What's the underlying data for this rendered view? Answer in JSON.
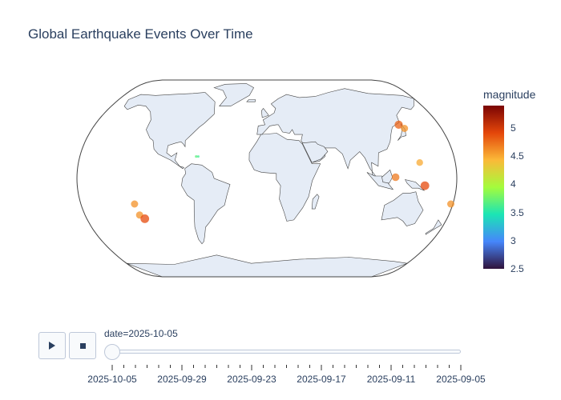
{
  "title": "Global Earthquake Events Over Time",
  "colorbar": {
    "title": "magnitude",
    "min": 2.5,
    "max": 5.4,
    "ticks": [
      "5",
      "4.5",
      "4",
      "3.5",
      "3",
      "2.5"
    ],
    "tick_values": [
      5,
      4.5,
      4,
      3.5,
      3,
      2.5
    ],
    "colorscale": [
      "#30123b",
      "#4686fb",
      "#1be5b5",
      "#a4fc3c",
      "#fbb938",
      "#e4460a",
      "#7a0403"
    ]
  },
  "map": {
    "projection": "natural earth",
    "land_color": "#e5ecf6",
    "coast_color": "#444444",
    "events": [
      {
        "lon": -128,
        "lat": -21,
        "magnitude": 4.6
      },
      {
        "lon": -126,
        "lat": -30,
        "magnitude": 4.6
      },
      {
        "lon": -122,
        "lat": -33,
        "magnitude": 4.9
      },
      {
        "lon": -68,
        "lat": 18,
        "magnitude": 3.7
      },
      {
        "lon": -66,
        "lat": 18,
        "magnitude": 3.6
      },
      {
        "lon": 138,
        "lat": 44,
        "magnitude": 4.8
      },
      {
        "lon": 142,
        "lat": 41,
        "magnitude": 4.6
      },
      {
        "lon": 122,
        "lat": 1,
        "magnitude": 4.7
      },
      {
        "lon": 146,
        "lat": 13,
        "magnitude": 4.5
      },
      {
        "lon": 150,
        "lat": -6,
        "magnitude": 4.9
      },
      {
        "lon": 178,
        "lat": -21,
        "magnitude": 4.6
      }
    ]
  },
  "player": {
    "slider_label": "date=2025-10-05",
    "tick_labels": [
      "2025-10-05",
      "2025-09-29",
      "2025-09-23",
      "2025-09-17",
      "2025-09-11",
      "2025-09-05"
    ]
  }
}
